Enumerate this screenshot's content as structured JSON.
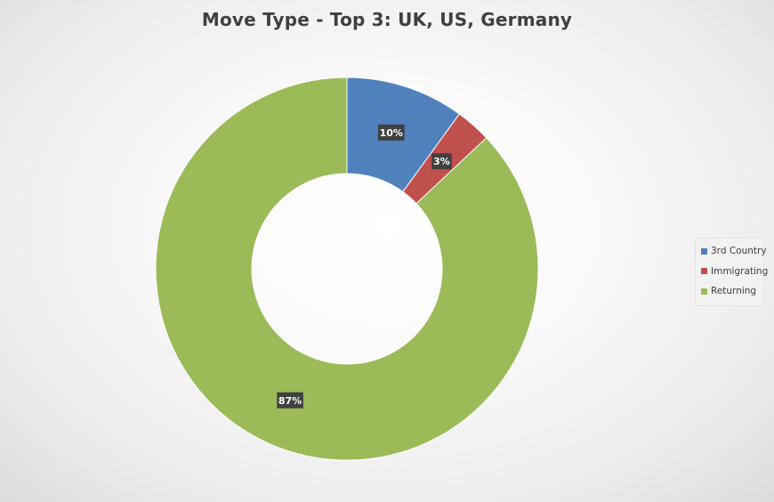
{
  "chart_data": {
    "type": "pie",
    "style": "doughnut",
    "title": "Move Type - Top 3: UK, US, Germany",
    "categories": [
      "3rd Country",
      "Immigrating",
      "Returning"
    ],
    "values": [
      10,
      3,
      87
    ],
    "value_labels": [
      "10%",
      "3%",
      "87%"
    ],
    "colors": [
      "#4f81bd",
      "#c0504d",
      "#9bbb59"
    ],
    "legend_position": "right",
    "start_angle": "12 o'clock, clockwise"
  }
}
